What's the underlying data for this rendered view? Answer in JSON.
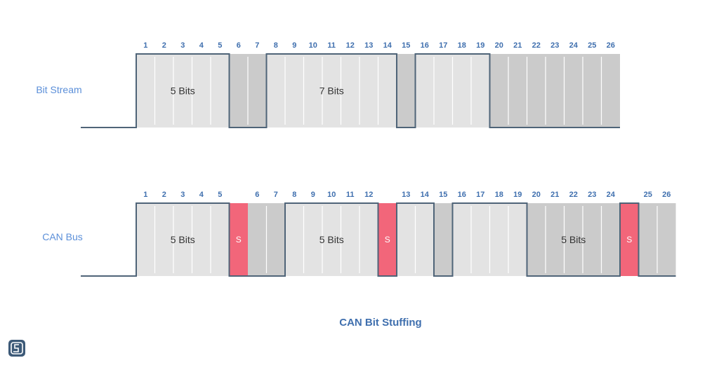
{
  "colors": {
    "light": "#e3e3e3",
    "dark": "#cbcbcb",
    "stuff": "#f2667a",
    "line": "#4f6478",
    "label": "#5b8fd9",
    "num": "#3f6fae"
  },
  "caption": "CAN Bit Stuffing",
  "rows": [
    {
      "id": "bit-stream",
      "label": "Bit Stream",
      "cells": [
        {
          "n": "1",
          "lvl": 1
        },
        {
          "n": "2",
          "lvl": 1
        },
        {
          "n": "3",
          "lvl": 1
        },
        {
          "n": "4",
          "lvl": 1
        },
        {
          "n": "5",
          "lvl": 1
        },
        {
          "n": "6",
          "lvl": 0
        },
        {
          "n": "7",
          "lvl": 0
        },
        {
          "n": "8",
          "lvl": 1
        },
        {
          "n": "9",
          "lvl": 1
        },
        {
          "n": "10",
          "lvl": 1
        },
        {
          "n": "11",
          "lvl": 1
        },
        {
          "n": "12",
          "lvl": 1
        },
        {
          "n": "13",
          "lvl": 1
        },
        {
          "n": "14",
          "lvl": 1
        },
        {
          "n": "15",
          "lvl": 0
        },
        {
          "n": "16",
          "lvl": 1
        },
        {
          "n": "17",
          "lvl": 1
        },
        {
          "n": "18",
          "lvl": 1
        },
        {
          "n": "19",
          "lvl": 1
        },
        {
          "n": "20",
          "lvl": 0
        },
        {
          "n": "21",
          "lvl": 0
        },
        {
          "n": "22",
          "lvl": 0
        },
        {
          "n": "23",
          "lvl": 0
        },
        {
          "n": "24",
          "lvl": 0
        },
        {
          "n": "25",
          "lvl": 0
        },
        {
          "n": "26",
          "lvl": 0
        }
      ],
      "groups": [
        {
          "text": "5 Bits",
          "from": 0,
          "to": 4
        },
        {
          "text": "7 Bits",
          "from": 7,
          "to": 13
        }
      ]
    },
    {
      "id": "can-bus",
      "label": "CAN Bus",
      "cells": [
        {
          "n": "1",
          "lvl": 1
        },
        {
          "n": "2",
          "lvl": 1
        },
        {
          "n": "3",
          "lvl": 1
        },
        {
          "n": "4",
          "lvl": 1
        },
        {
          "n": "5",
          "lvl": 1
        },
        {
          "n": "S",
          "lvl": 0,
          "stuff": true
        },
        {
          "n": "6",
          "lvl": 0
        },
        {
          "n": "7",
          "lvl": 0
        },
        {
          "n": "8",
          "lvl": 1
        },
        {
          "n": "9",
          "lvl": 1
        },
        {
          "n": "10",
          "lvl": 1
        },
        {
          "n": "11",
          "lvl": 1
        },
        {
          "n": "12",
          "lvl": 1
        },
        {
          "n": "S",
          "lvl": 0,
          "stuff": true
        },
        {
          "n": "13",
          "lvl": 1
        },
        {
          "n": "14",
          "lvl": 1
        },
        {
          "n": "15",
          "lvl": 0
        },
        {
          "n": "16",
          "lvl": 1
        },
        {
          "n": "17",
          "lvl": 1
        },
        {
          "n": "18",
          "lvl": 1
        },
        {
          "n": "19",
          "lvl": 1
        },
        {
          "n": "20",
          "lvl": 0
        },
        {
          "n": "21",
          "lvl": 0
        },
        {
          "n": "22",
          "lvl": 0
        },
        {
          "n": "23",
          "lvl": 0
        },
        {
          "n": "24",
          "lvl": 0
        },
        {
          "n": "S",
          "lvl": 1,
          "stuff": true
        },
        {
          "n": "25",
          "lvl": 0
        },
        {
          "n": "26",
          "lvl": 0
        }
      ],
      "groups": [
        {
          "text": "5 Bits",
          "from": 0,
          "to": 4
        },
        {
          "text": "5 Bits",
          "from": 8,
          "to": 12
        },
        {
          "text": "5 Bits",
          "from": 21,
          "to": 25
        }
      ]
    }
  ]
}
